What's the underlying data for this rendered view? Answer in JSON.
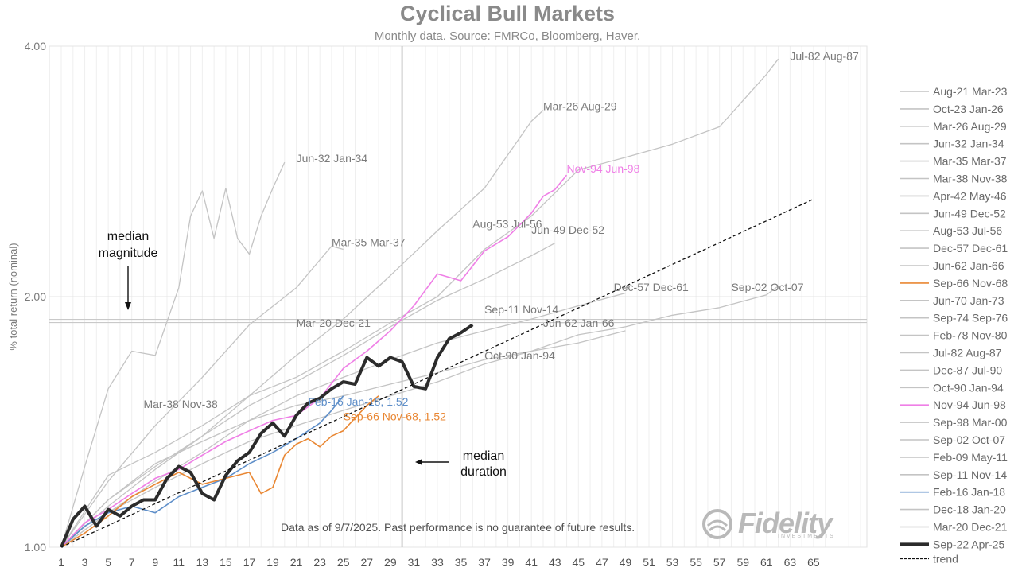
{
  "chart_data": {
    "type": "line",
    "title": "Cyclical Bull Markets",
    "subtitle": "Monthly data.  Source: FMRCo, Bloomberg, Haver.",
    "ylabel": "% total return (nominal)",
    "y_scale": "log",
    "ylim": [
      1.0,
      4.0
    ],
    "y_ticks": [
      "1.00",
      "2.00",
      "4.00"
    ],
    "x_ticks": [
      "1",
      "3",
      "5",
      "7",
      "9",
      "11",
      "13",
      "15",
      "17",
      "19",
      "21",
      "23",
      "25",
      "27",
      "29",
      "31",
      "33",
      "35",
      "37",
      "39",
      "41",
      "43",
      "45",
      "47",
      "49",
      "51",
      "53",
      "55",
      "57",
      "59",
      "61",
      "63",
      "65"
    ],
    "xlim": [
      1,
      66
    ],
    "legend_position": "right",
    "legend": [
      {
        "label": "Aug-21 Mar-23",
        "color": "#c4c4c4"
      },
      {
        "label": "Oct-23 Jan-26",
        "color": "#c4c4c4"
      },
      {
        "label": "Mar-26 Aug-29",
        "color": "#c4c4c4"
      },
      {
        "label": "Jun-32 Jan-34",
        "color": "#c4c4c4"
      },
      {
        "label": "Mar-35 Mar-37",
        "color": "#c4c4c4"
      },
      {
        "label": "Mar-38 Nov-38",
        "color": "#c4c4c4"
      },
      {
        "label": "Apr-42 May-46",
        "color": "#c4c4c4"
      },
      {
        "label": "Jun-49 Dec-52",
        "color": "#c4c4c4"
      },
      {
        "label": "Aug-53 Jul-56",
        "color": "#c4c4c4"
      },
      {
        "label": "Dec-57 Dec-61",
        "color": "#c4c4c4"
      },
      {
        "label": "Jun-62 Jan-66",
        "color": "#c4c4c4"
      },
      {
        "label": "Sep-66 Nov-68",
        "color": "#e98733"
      },
      {
        "label": "Jun-70 Jan-73",
        "color": "#c4c4c4"
      },
      {
        "label": "Sep-74 Sep-76",
        "color": "#c4c4c4"
      },
      {
        "label": "Feb-78 Nov-80",
        "color": "#c4c4c4"
      },
      {
        "label": "Jul-82 Aug-87",
        "color": "#c4c4c4"
      },
      {
        "label": "Dec-87 Jul-90",
        "color": "#c4c4c4"
      },
      {
        "label": "Oct-90 Jan-94",
        "color": "#c4c4c4"
      },
      {
        "label": "Nov-94 Jun-98",
        "color": "#ef7fe6"
      },
      {
        "label": "Sep-98 Mar-00",
        "color": "#c4c4c4"
      },
      {
        "label": "Sep-02 Oct-07",
        "color": "#c4c4c4"
      },
      {
        "label": "Feb-09 May-11",
        "color": "#c4c4c4"
      },
      {
        "label": "Sep-11 Nov-14",
        "color": "#c4c4c4"
      },
      {
        "label": "Feb-16 Jan-18",
        "color": "#5f8fc9"
      },
      {
        "label": "Dec-18 Jan-20",
        "color": "#c4c4c4"
      },
      {
        "label": "Mar-20 Dec-21",
        "color": "#c4c4c4"
      },
      {
        "label": "Sep-22 Apr-25",
        "color": "#2b2b2b",
        "bold": true
      },
      {
        "label": "trend",
        "color": "#111111",
        "dashed": true
      }
    ],
    "median_magnitude": 1.87,
    "median_duration": 30,
    "series": [
      {
        "name": "Sep-22 Apr-25",
        "color": "#2b2b2b",
        "emphasis": "bold",
        "x": [
          1,
          2,
          3,
          4,
          5,
          6,
          7,
          8,
          9,
          10,
          11,
          12,
          13,
          14,
          15,
          16,
          17,
          18,
          19,
          20,
          21,
          22,
          23,
          24,
          25,
          26,
          27,
          28,
          29,
          30,
          31,
          32,
          33,
          34,
          35,
          36
        ],
        "values": [
          1.0,
          1.08,
          1.12,
          1.06,
          1.11,
          1.09,
          1.12,
          1.14,
          1.14,
          1.21,
          1.25,
          1.23,
          1.16,
          1.14,
          1.22,
          1.27,
          1.3,
          1.37,
          1.41,
          1.36,
          1.44,
          1.49,
          1.51,
          1.55,
          1.58,
          1.57,
          1.69,
          1.65,
          1.69,
          1.67,
          1.56,
          1.55,
          1.69,
          1.78,
          1.81,
          1.85
        ]
      },
      {
        "name": "Nov-94 Jun-98",
        "color": "#ef7fe6",
        "x": [
          1,
          3,
          5,
          7,
          9,
          11,
          13,
          15,
          17,
          19,
          21,
          23,
          25,
          27,
          29,
          31,
          33,
          35,
          37,
          39,
          41,
          42,
          43,
          44
        ],
        "values": [
          1.0,
          1.07,
          1.11,
          1.16,
          1.21,
          1.24,
          1.29,
          1.34,
          1.38,
          1.42,
          1.44,
          1.51,
          1.64,
          1.72,
          1.82,
          1.95,
          2.13,
          2.09,
          2.27,
          2.36,
          2.52,
          2.64,
          2.69,
          2.8
        ]
      },
      {
        "name": "Sep-66 Nov-68",
        "color": "#e98733",
        "x": [
          1,
          3,
          5,
          7,
          9,
          11,
          13,
          15,
          17,
          18,
          19,
          20,
          21,
          22,
          23,
          24,
          25,
          26,
          27,
          28
        ],
        "values": [
          1.0,
          1.04,
          1.09,
          1.15,
          1.19,
          1.23,
          1.19,
          1.21,
          1.23,
          1.16,
          1.18,
          1.29,
          1.33,
          1.35,
          1.32,
          1.36,
          1.38,
          1.43,
          1.48,
          1.52
        ]
      },
      {
        "name": "Feb-16 Jan-18",
        "color": "#5f8fc9",
        "x": [
          1,
          3,
          5,
          7,
          9,
          11,
          13,
          15,
          17,
          19,
          21,
          23,
          24,
          25
        ],
        "values": [
          1.0,
          1.06,
          1.1,
          1.12,
          1.1,
          1.15,
          1.18,
          1.21,
          1.26,
          1.3,
          1.35,
          1.41,
          1.46,
          1.52
        ]
      },
      {
        "name": "Jul-82 Aug-87",
        "color": "#c4c4c4",
        "x": [
          1,
          5,
          9,
          13,
          17,
          21,
          25,
          29,
          33,
          37,
          41,
          45,
          49,
          53,
          57,
          61,
          62
        ],
        "values": [
          1.0,
          1.22,
          1.3,
          1.4,
          1.52,
          1.6,
          1.72,
          1.86,
          2.0,
          2.28,
          2.5,
          2.84,
          2.94,
          3.05,
          3.2,
          3.7,
          3.86
        ]
      },
      {
        "name": "Mar-26 Aug-29",
        "color": "#c4c4c4",
        "x": [
          1,
          5,
          9,
          13,
          17,
          21,
          25,
          29,
          33,
          37,
          41,
          42
        ],
        "values": [
          1.0,
          1.14,
          1.25,
          1.36,
          1.52,
          1.7,
          1.88,
          2.12,
          2.4,
          2.7,
          3.25,
          3.35
        ]
      },
      {
        "name": "Jun-32 Jan-34",
        "color": "#c4c4c4",
        "x": [
          1,
          3,
          5,
          7,
          9,
          11,
          12,
          13,
          14,
          15,
          16,
          17,
          18,
          19,
          20
        ],
        "values": [
          1.0,
          1.25,
          1.55,
          1.72,
          1.7,
          2.05,
          2.5,
          2.68,
          2.35,
          2.7,
          2.35,
          2.25,
          2.5,
          2.7,
          2.9
        ]
      },
      {
        "name": "Mar-35 Mar-37",
        "color": "#c4c4c4",
        "x": [
          1,
          5,
          9,
          13,
          17,
          21,
          24,
          25
        ],
        "values": [
          1.0,
          1.2,
          1.4,
          1.6,
          1.85,
          2.05,
          2.3,
          2.28
        ]
      },
      {
        "name": "Jun-49 Dec-52",
        "color": "#c4c4c4",
        "x": [
          1,
          5,
          9,
          13,
          17,
          21,
          25,
          29,
          33,
          37,
          41,
          43
        ],
        "values": [
          1.0,
          1.12,
          1.24,
          1.36,
          1.48,
          1.58,
          1.7,
          1.84,
          1.98,
          2.1,
          2.24,
          2.32
        ]
      },
      {
        "name": "Dec-57 Dec-61",
        "color": "#c4c4c4",
        "x": [
          1,
          5,
          9,
          13,
          17,
          21,
          25,
          29,
          33,
          37,
          41,
          45,
          49
        ],
        "values": [
          1.0,
          1.1,
          1.2,
          1.3,
          1.42,
          1.52,
          1.6,
          1.68,
          1.76,
          1.82,
          1.88,
          1.95,
          2.02
        ]
      },
      {
        "name": "Sep-02 Oct-07",
        "color": "#c4c4c4",
        "x": [
          1,
          5,
          9,
          13,
          17,
          21,
          25,
          29,
          33,
          37,
          41,
          45,
          49,
          53,
          57,
          61,
          62
        ],
        "values": [
          1.0,
          1.1,
          1.18,
          1.26,
          1.34,
          1.4,
          1.46,
          1.52,
          1.58,
          1.66,
          1.72,
          1.8,
          1.84,
          1.9,
          1.94,
          2.01,
          2.06
        ]
      },
      {
        "name": "Oct-90 Jan-94",
        "color": "#c4c4c4",
        "x": [
          1,
          5,
          9,
          13,
          17,
          21,
          25,
          29,
          33,
          37,
          41,
          45,
          49
        ],
        "values": [
          1.0,
          1.14,
          1.26,
          1.34,
          1.42,
          1.48,
          1.52,
          1.57,
          1.62,
          1.68,
          1.72,
          1.76,
          1.82
        ]
      }
    ],
    "trend": {
      "x": [
        1,
        65
      ],
      "values": [
        1.0,
        2.62
      ]
    },
    "annotations": [
      {
        "text": "Jul-82 Aug-87",
        "x": 63,
        "y": 3.85
      },
      {
        "text": "Mar-26 Aug-29",
        "x": 42,
        "y": 3.35
      },
      {
        "text": "Jun-32 Jan-34",
        "x": 21,
        "y": 2.9
      },
      {
        "text": "Nov-94 Jun-98",
        "x": 44,
        "y": 2.82
      },
      {
        "text": "Mar-35 Mar-37",
        "x": 24,
        "y": 2.3
      },
      {
        "text": "Aug-53  Jul-56",
        "x": 36,
        "y": 2.42
      },
      {
        "text": "Jun-49 Dec-52",
        "x": 41,
        "y": 2.38
      },
      {
        "text": "Dec-57 Dec-61",
        "x": 48,
        "y": 2.03
      },
      {
        "text": "Sep-02 Oct-07",
        "x": 58,
        "y": 2.03
      },
      {
        "text": "Sep-11 Nov-14",
        "x": 37,
        "y": 1.91
      },
      {
        "text": "Mar-20 Dec-21",
        "x": 21,
        "y": 1.84
      },
      {
        "text": "Jun-62 Jan-66",
        "x": 42,
        "y": 1.84
      },
      {
        "text": "Oct-90 Jan-94",
        "x": 37,
        "y": 1.68
      },
      {
        "text": "Mar-38 Nov-38",
        "x": 8,
        "y": 1.47
      },
      {
        "text": "Feb-16 Jan-18, 1.52",
        "x": 22,
        "y": 1.48
      },
      {
        "text": "Sep-66 Nov-68, 1.52",
        "x": 25,
        "y": 1.42
      }
    ],
    "median_magnitude_label": [
      "median",
      "magnitude"
    ],
    "median_duration_label": [
      "median",
      "duration"
    ]
  },
  "footnote": "Data as of 9/7/2025. Past performance is no guarantee of future results.",
  "logo": {
    "name": "Fidelity",
    "sub": "INVESTMENTS"
  }
}
